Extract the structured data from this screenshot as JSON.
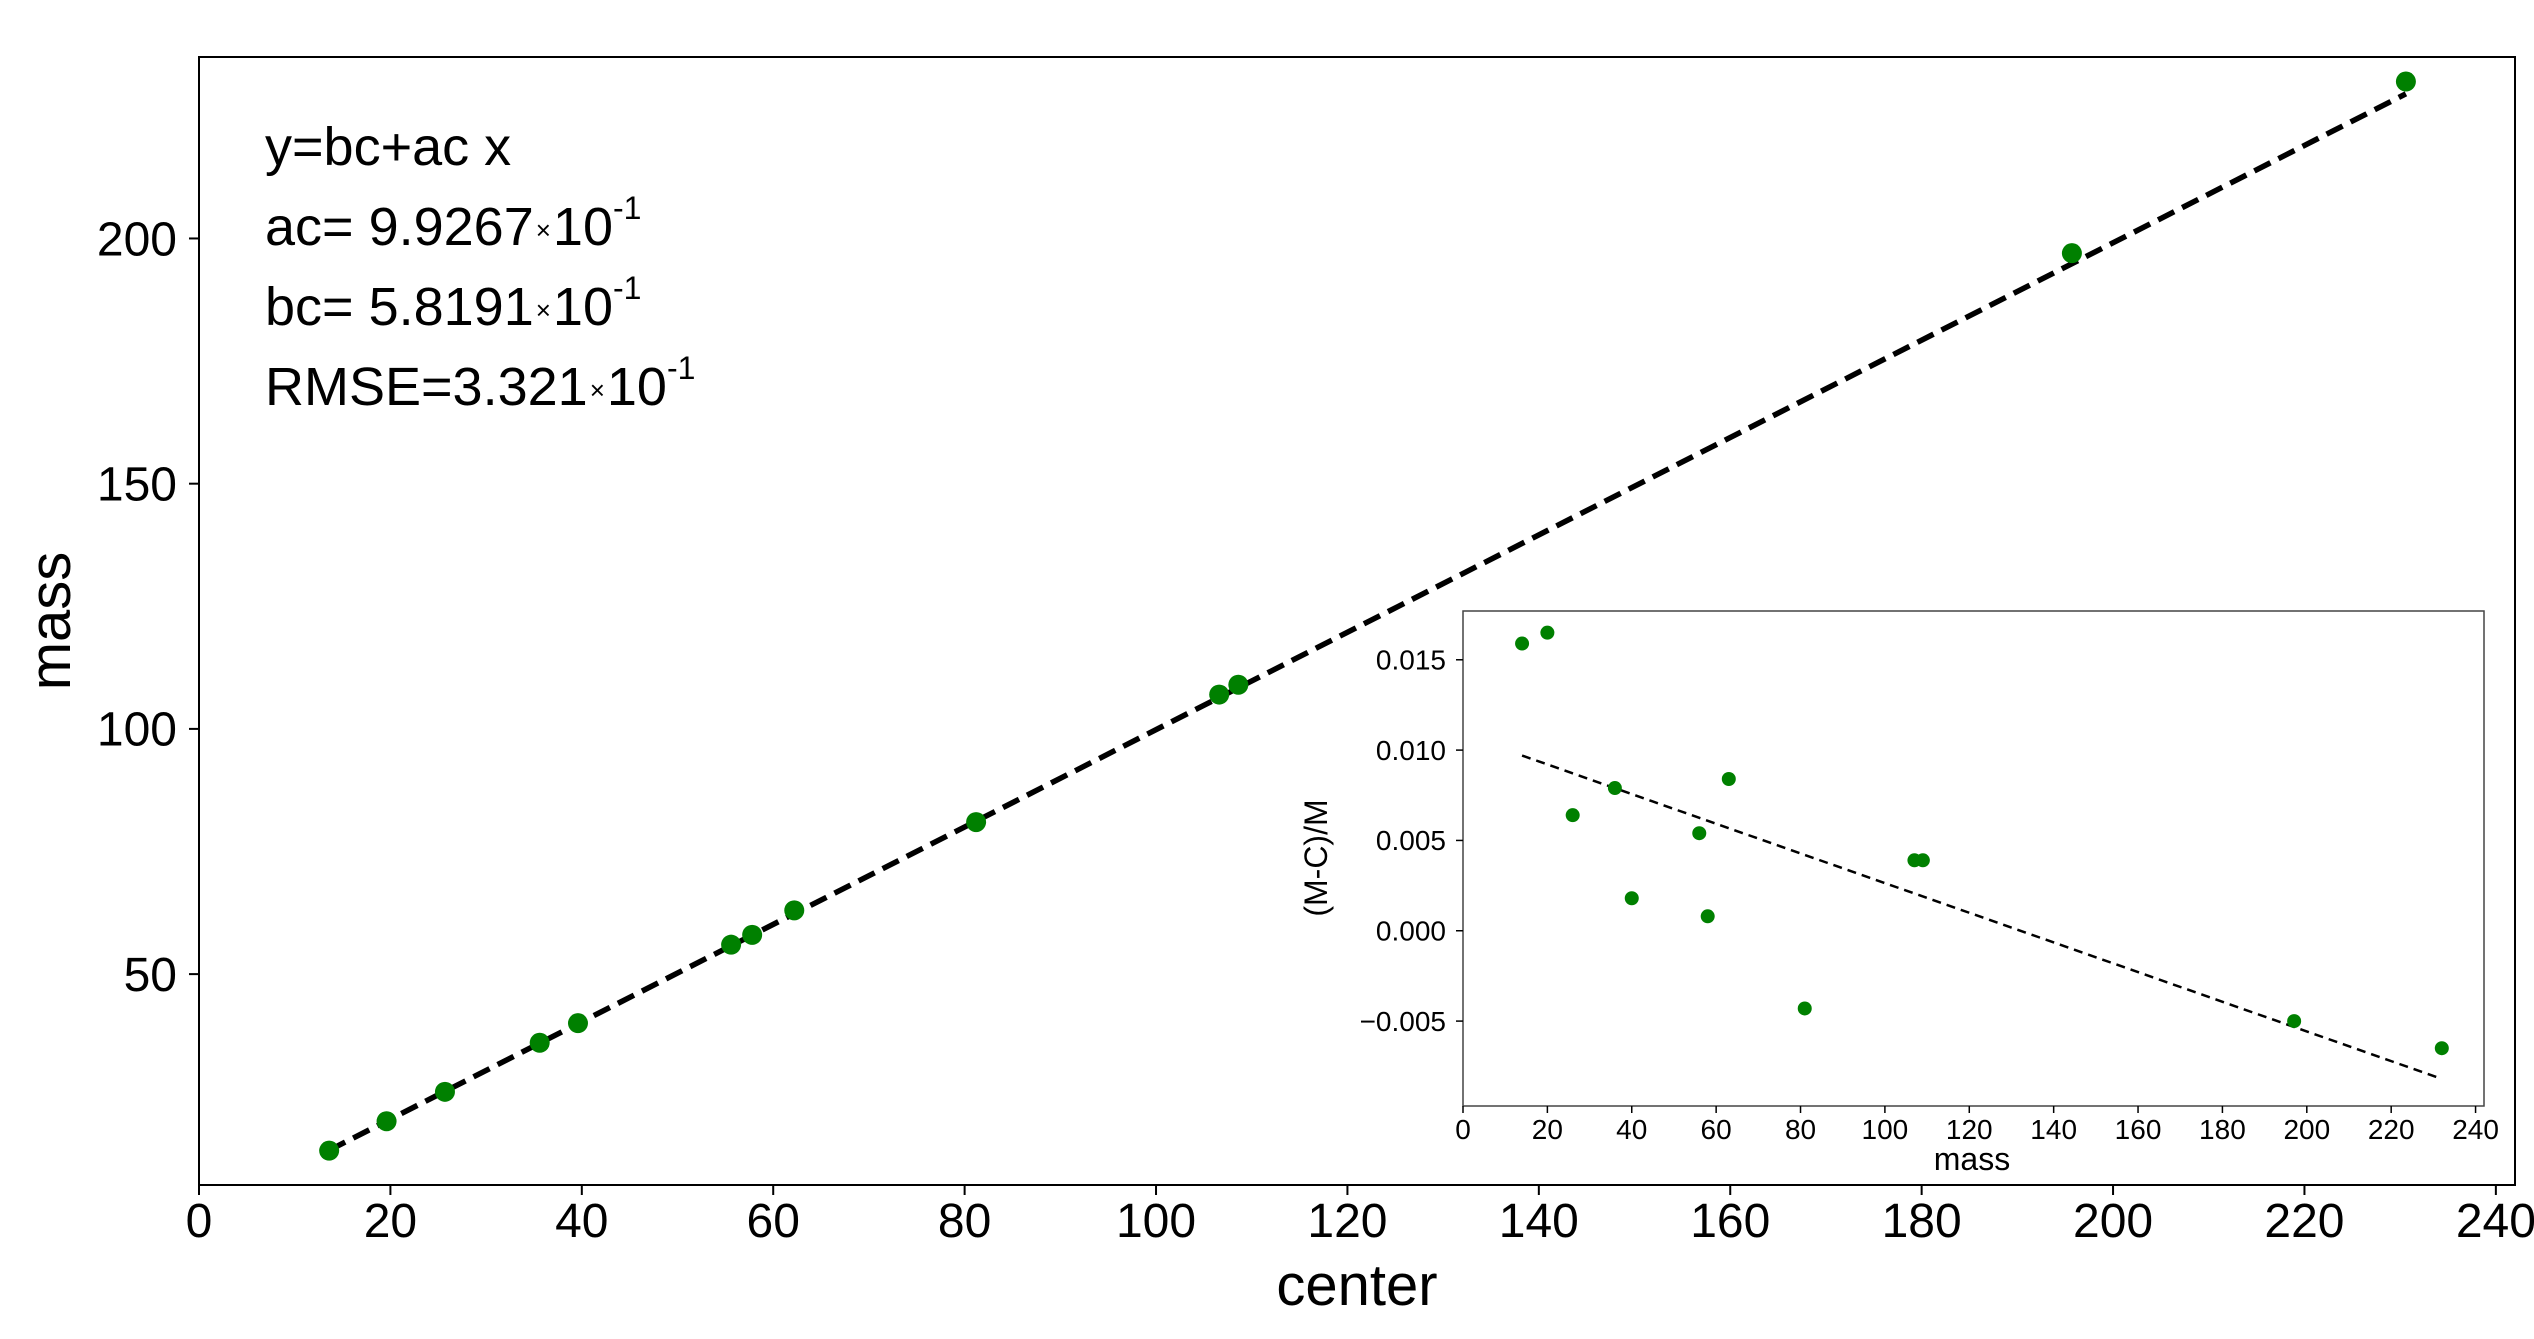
{
  "chart_data": [
    {
      "type": "scatter",
      "title": "",
      "xlabel": "center",
      "ylabel": "mass",
      "xlim": [
        0,
        242
      ],
      "ylim": [
        7,
        237
      ],
      "xticks": [
        0,
        20,
        40,
        60,
        80,
        100,
        120,
        140,
        160,
        180,
        200,
        220,
        240
      ],
      "yticks": [
        50,
        100,
        150,
        200
      ],
      "grid": false,
      "marker_color": "#008000",
      "fit_line": {
        "style": "dashed",
        "color": "#000000",
        "slope": 0.99267,
        "intercept": 0.58191,
        "x_range": [
          13.6,
          230.6
        ]
      },
      "annotation": {
        "line1": "y=bc+ac x",
        "ac_prefix": "ac= 9.9267",
        "ac_exp": "-1",
        "bc_prefix": "bc= 5.8191",
        "bc_exp": "-1",
        "rmse_prefix": "RMSE=3.321",
        "rmse_exp": "-1",
        "times": "×",
        "base": "10"
      },
      "points": [
        {
          "x": 13.6,
          "y": 14.0
        },
        {
          "x": 19.6,
          "y": 20.0
        },
        {
          "x": 25.7,
          "y": 26.0
        },
        {
          "x": 35.6,
          "y": 36.0
        },
        {
          "x": 39.6,
          "y": 40.0
        },
        {
          "x": 55.6,
          "y": 56.0
        },
        {
          "x": 57.8,
          "y": 58.0
        },
        {
          "x": 62.2,
          "y": 63.0
        },
        {
          "x": 81.2,
          "y": 81.0
        },
        {
          "x": 106.6,
          "y": 107.0
        },
        {
          "x": 108.6,
          "y": 109.0
        },
        {
          "x": 195.7,
          "y": 197.0
        },
        {
          "x": 230.6,
          "y": 232.0
        }
      ]
    },
    {
      "type": "scatter",
      "title": "",
      "xlabel": "mass",
      "ylabel": "(M-C)/M",
      "xlim": [
        0,
        242
      ],
      "ylim": [
        -0.0097,
        0.0177
      ],
      "xticks": [
        0,
        20,
        40,
        60,
        80,
        100,
        120,
        140,
        160,
        180,
        200,
        220,
        240
      ],
      "yticks": [
        -0.005,
        0.0,
        0.005,
        0.01,
        0.015
      ],
      "ytick_labels": [
        "−0.005",
        "0.000",
        "0.005",
        "0.010",
        "0.015"
      ],
      "grid": false,
      "marker_color": "#008000",
      "fit_line": {
        "style": "dashed",
        "color": "#000000",
        "from": [
          14,
          0.0097
        ],
        "to": [
          232,
          -0.0082
        ]
      },
      "points": [
        {
          "x": 14,
          "y": 0.0159
        },
        {
          "x": 20,
          "y": 0.0165
        },
        {
          "x": 26,
          "y": 0.0064
        },
        {
          "x": 36,
          "y": 0.0079
        },
        {
          "x": 40,
          "y": 0.0018
        },
        {
          "x": 56,
          "y": 0.0054
        },
        {
          "x": 58,
          "y": 0.0008
        },
        {
          "x": 63,
          "y": 0.0084
        },
        {
          "x": 81,
          "y": -0.0043
        },
        {
          "x": 107,
          "y": 0.0039
        },
        {
          "x": 109,
          "y": 0.0039
        },
        {
          "x": 197,
          "y": -0.005
        },
        {
          "x": 232,
          "y": -0.0065
        }
      ]
    }
  ]
}
